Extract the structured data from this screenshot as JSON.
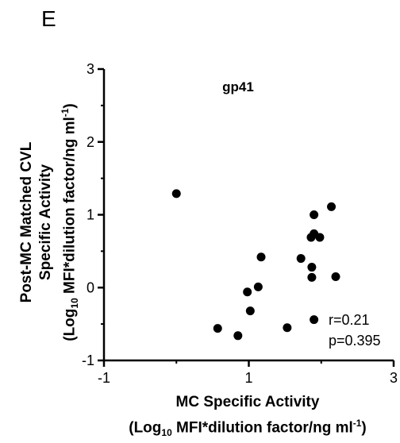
{
  "panel_letter": "E",
  "chart_data": {
    "type": "scatter",
    "title": "gp41",
    "xlabel_line1": "MC Specific Activity",
    "xlabel_line2_pre": "(Log",
    "xlabel_line2_sub": "10",
    "xlabel_line2_post": " MFI*dilution factor/ng ml",
    "xlabel_line2_sup": "-1",
    "xlabel_line2_end": ")",
    "ylabel_line1": "Post-MC Matched CVL",
    "ylabel_line2": "Specific Activity",
    "ylabel_line3_pre": "(Log",
    "ylabel_line3_sub": "10",
    "ylabel_line3_post": " MFI*dilution factor/ng ml",
    "ylabel_line3_sup": "-1",
    "ylabel_line3_end": ")",
    "xlim": [
      -1,
      3
    ],
    "ylim": [
      -1,
      3
    ],
    "xticks": [
      -1,
      1,
      3
    ],
    "yticks": [
      -1,
      0,
      1,
      2,
      3
    ],
    "xtick_labels": [
      "-1",
      "1",
      "3"
    ],
    "ytick_labels": [
      "-1",
      "0",
      "1",
      "2",
      "3"
    ],
    "points": [
      {
        "x": 0.0,
        "y": 1.29
      },
      {
        "x": 0.57,
        "y": -0.56
      },
      {
        "x": 0.85,
        "y": -0.66
      },
      {
        "x": 0.98,
        "y": -0.06
      },
      {
        "x": 1.02,
        "y": -0.32
      },
      {
        "x": 1.13,
        "y": 0.01
      },
      {
        "x": 1.17,
        "y": 0.42
      },
      {
        "x": 1.53,
        "y": -0.55
      },
      {
        "x": 1.72,
        "y": 0.4
      },
      {
        "x": 1.86,
        "y": 0.69
      },
      {
        "x": 1.87,
        "y": 0.14
      },
      {
        "x": 1.87,
        "y": 0.28
      },
      {
        "x": 1.9,
        "y": 1.0
      },
      {
        "x": 1.9,
        "y": 0.74
      },
      {
        "x": 1.9,
        "y": -0.44
      },
      {
        "x": 1.98,
        "y": 0.69
      },
      {
        "x": 2.14,
        "y": 1.11
      },
      {
        "x": 2.2,
        "y": 0.15
      }
    ],
    "annotation_r": "r=0.21",
    "annotation_p": "p=0.395",
    "grid": false,
    "legend": "none"
  }
}
